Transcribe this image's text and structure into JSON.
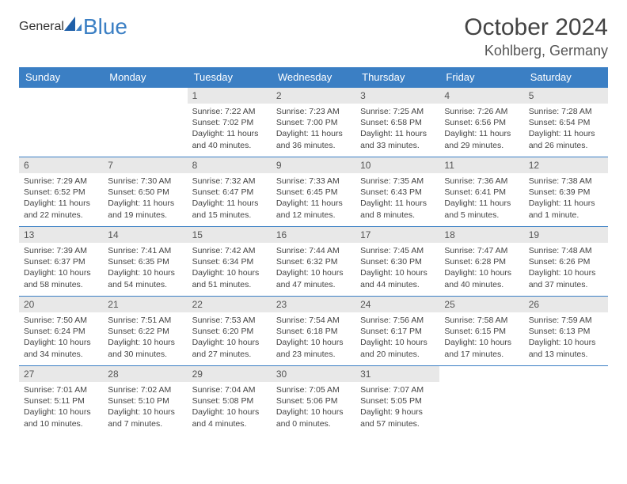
{
  "logo": {
    "text1": "General",
    "text2": "Blue"
  },
  "title": "October 2024",
  "location": "Kohlberg, Germany",
  "colors": {
    "accent": "#3b7fc4",
    "header_bg": "#3b7fc4",
    "daynum_bg": "#e8e8e8"
  },
  "day_names": [
    "Sunday",
    "Monday",
    "Tuesday",
    "Wednesday",
    "Thursday",
    "Friday",
    "Saturday"
  ],
  "weeks": [
    [
      null,
      null,
      {
        "n": "1",
        "sr": "Sunrise: 7:22 AM",
        "ss": "Sunset: 7:02 PM",
        "dl": "Daylight: 11 hours and 40 minutes."
      },
      {
        "n": "2",
        "sr": "Sunrise: 7:23 AM",
        "ss": "Sunset: 7:00 PM",
        "dl": "Daylight: 11 hours and 36 minutes."
      },
      {
        "n": "3",
        "sr": "Sunrise: 7:25 AM",
        "ss": "Sunset: 6:58 PM",
        "dl": "Daylight: 11 hours and 33 minutes."
      },
      {
        "n": "4",
        "sr": "Sunrise: 7:26 AM",
        "ss": "Sunset: 6:56 PM",
        "dl": "Daylight: 11 hours and 29 minutes."
      },
      {
        "n": "5",
        "sr": "Sunrise: 7:28 AM",
        "ss": "Sunset: 6:54 PM",
        "dl": "Daylight: 11 hours and 26 minutes."
      }
    ],
    [
      {
        "n": "6",
        "sr": "Sunrise: 7:29 AM",
        "ss": "Sunset: 6:52 PM",
        "dl": "Daylight: 11 hours and 22 minutes."
      },
      {
        "n": "7",
        "sr": "Sunrise: 7:30 AM",
        "ss": "Sunset: 6:50 PM",
        "dl": "Daylight: 11 hours and 19 minutes."
      },
      {
        "n": "8",
        "sr": "Sunrise: 7:32 AM",
        "ss": "Sunset: 6:47 PM",
        "dl": "Daylight: 11 hours and 15 minutes."
      },
      {
        "n": "9",
        "sr": "Sunrise: 7:33 AM",
        "ss": "Sunset: 6:45 PM",
        "dl": "Daylight: 11 hours and 12 minutes."
      },
      {
        "n": "10",
        "sr": "Sunrise: 7:35 AM",
        "ss": "Sunset: 6:43 PM",
        "dl": "Daylight: 11 hours and 8 minutes."
      },
      {
        "n": "11",
        "sr": "Sunrise: 7:36 AM",
        "ss": "Sunset: 6:41 PM",
        "dl": "Daylight: 11 hours and 5 minutes."
      },
      {
        "n": "12",
        "sr": "Sunrise: 7:38 AM",
        "ss": "Sunset: 6:39 PM",
        "dl": "Daylight: 11 hours and 1 minute."
      }
    ],
    [
      {
        "n": "13",
        "sr": "Sunrise: 7:39 AM",
        "ss": "Sunset: 6:37 PM",
        "dl": "Daylight: 10 hours and 58 minutes."
      },
      {
        "n": "14",
        "sr": "Sunrise: 7:41 AM",
        "ss": "Sunset: 6:35 PM",
        "dl": "Daylight: 10 hours and 54 minutes."
      },
      {
        "n": "15",
        "sr": "Sunrise: 7:42 AM",
        "ss": "Sunset: 6:34 PM",
        "dl": "Daylight: 10 hours and 51 minutes."
      },
      {
        "n": "16",
        "sr": "Sunrise: 7:44 AM",
        "ss": "Sunset: 6:32 PM",
        "dl": "Daylight: 10 hours and 47 minutes."
      },
      {
        "n": "17",
        "sr": "Sunrise: 7:45 AM",
        "ss": "Sunset: 6:30 PM",
        "dl": "Daylight: 10 hours and 44 minutes."
      },
      {
        "n": "18",
        "sr": "Sunrise: 7:47 AM",
        "ss": "Sunset: 6:28 PM",
        "dl": "Daylight: 10 hours and 40 minutes."
      },
      {
        "n": "19",
        "sr": "Sunrise: 7:48 AM",
        "ss": "Sunset: 6:26 PM",
        "dl": "Daylight: 10 hours and 37 minutes."
      }
    ],
    [
      {
        "n": "20",
        "sr": "Sunrise: 7:50 AM",
        "ss": "Sunset: 6:24 PM",
        "dl": "Daylight: 10 hours and 34 minutes."
      },
      {
        "n": "21",
        "sr": "Sunrise: 7:51 AM",
        "ss": "Sunset: 6:22 PM",
        "dl": "Daylight: 10 hours and 30 minutes."
      },
      {
        "n": "22",
        "sr": "Sunrise: 7:53 AM",
        "ss": "Sunset: 6:20 PM",
        "dl": "Daylight: 10 hours and 27 minutes."
      },
      {
        "n": "23",
        "sr": "Sunrise: 7:54 AM",
        "ss": "Sunset: 6:18 PM",
        "dl": "Daylight: 10 hours and 23 minutes."
      },
      {
        "n": "24",
        "sr": "Sunrise: 7:56 AM",
        "ss": "Sunset: 6:17 PM",
        "dl": "Daylight: 10 hours and 20 minutes."
      },
      {
        "n": "25",
        "sr": "Sunrise: 7:58 AM",
        "ss": "Sunset: 6:15 PM",
        "dl": "Daylight: 10 hours and 17 minutes."
      },
      {
        "n": "26",
        "sr": "Sunrise: 7:59 AM",
        "ss": "Sunset: 6:13 PM",
        "dl": "Daylight: 10 hours and 13 minutes."
      }
    ],
    [
      {
        "n": "27",
        "sr": "Sunrise: 7:01 AM",
        "ss": "Sunset: 5:11 PM",
        "dl": "Daylight: 10 hours and 10 minutes."
      },
      {
        "n": "28",
        "sr": "Sunrise: 7:02 AM",
        "ss": "Sunset: 5:10 PM",
        "dl": "Daylight: 10 hours and 7 minutes."
      },
      {
        "n": "29",
        "sr": "Sunrise: 7:04 AM",
        "ss": "Sunset: 5:08 PM",
        "dl": "Daylight: 10 hours and 4 minutes."
      },
      {
        "n": "30",
        "sr": "Sunrise: 7:05 AM",
        "ss": "Sunset: 5:06 PM",
        "dl": "Daylight: 10 hours and 0 minutes."
      },
      {
        "n": "31",
        "sr": "Sunrise: 7:07 AM",
        "ss": "Sunset: 5:05 PM",
        "dl": "Daylight: 9 hours and 57 minutes."
      },
      null,
      null
    ]
  ]
}
